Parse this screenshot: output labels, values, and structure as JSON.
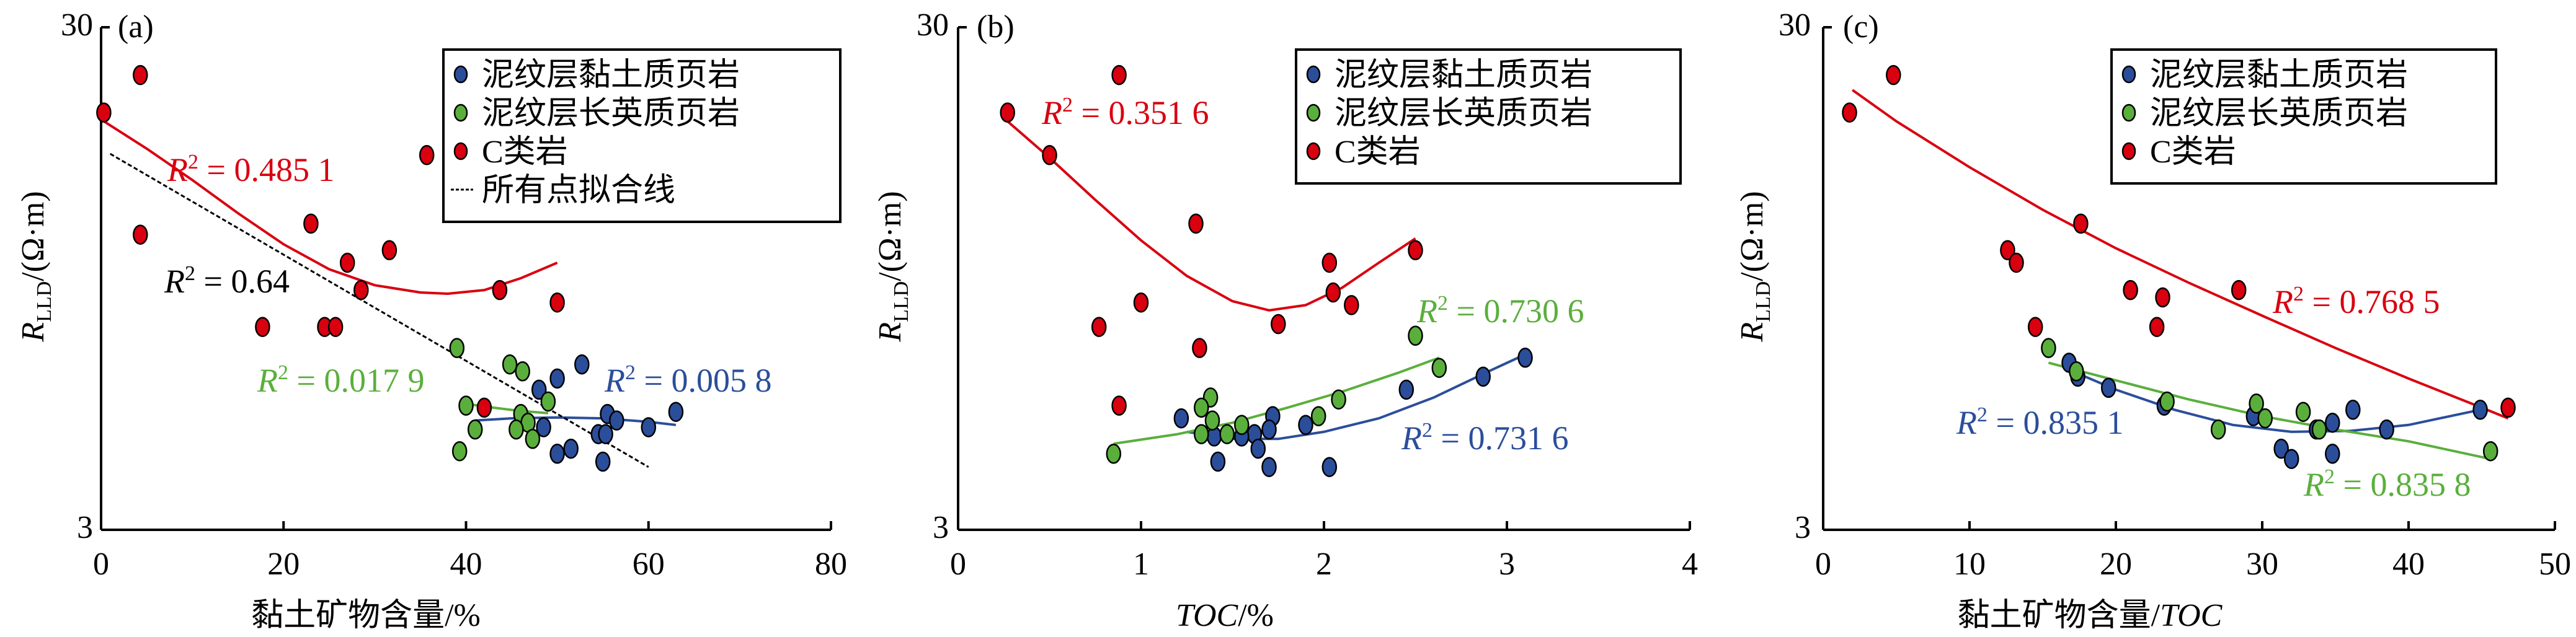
{
  "figure": {
    "colors": {
      "clay": "#2b4e9b",
      "felsic": "#5aaf3c",
      "c_rock": "#d9000f",
      "all_fit": "#000000"
    },
    "legend_entries": {
      "clay": "泥纹层黏土质页岩",
      "felsic": "泥纹层长英质页岩",
      "c_rock": "C类岩",
      "all_fit": "所有点拟合线"
    }
  },
  "chart_data": [
    {
      "type": "scatter",
      "panel_label": "(a)",
      "title": "",
      "xlabel": "黏土矿物含量/%",
      "ylabel_main": "R",
      "ylabel_sub": "LLD",
      "ylabel_unit": "/(Ω·m)",
      "xlim": [
        0,
        80
      ],
      "ylim": [
        3,
        30
      ],
      "yscale": "log",
      "xticks": [
        0,
        20,
        40,
        60,
        80
      ],
      "yticks": [
        3,
        30
      ],
      "grid": false,
      "legend_position": "top-right",
      "legend": [
        "clay",
        "felsic",
        "c_rock",
        "all_fit"
      ],
      "series": [
        {
          "name": "泥纹层黏土质页岩",
          "key": "clay",
          "points": [
            [
              52.7,
              6.4
            ],
            [
              50,
              6.0
            ],
            [
              48,
              5.7
            ],
            [
              63,
              5.15
            ],
            [
              55.5,
              5.1
            ],
            [
              56.5,
              4.95
            ],
            [
              60,
              4.8
            ],
            [
              48.5,
              4.8
            ],
            [
              54.5,
              4.65
            ],
            [
              55.3,
              4.65
            ],
            [
              51.5,
              4.35
            ],
            [
              50,
              4.25
            ],
            [
              55,
              4.1
            ]
          ],
          "fit": {
            "r2_label": "R² = 0.005 8",
            "r2": 0.0058,
            "curve": [
              [
                41,
                4.95
              ],
              [
                45,
                5.0
              ],
              [
                50,
                5.02
              ],
              [
                55,
                5.0
              ],
              [
                60,
                4.92
              ],
              [
                63,
                4.85
              ]
            ]
          }
        },
        {
          "name": "泥纹层长英质页岩",
          "key": "felsic",
          "points": [
            [
              39,
              6.9
            ],
            [
              44.8,
              6.4
            ],
            [
              46.2,
              6.2
            ],
            [
              49,
              5.4
            ],
            [
              40,
              5.3
            ],
            [
              46,
              5.1
            ],
            [
              46.8,
              4.9
            ],
            [
              45.5,
              4.75
            ],
            [
              41,
              4.75
            ],
            [
              47.3,
              4.55
            ],
            [
              39.3,
              4.3
            ]
          ],
          "fit": {
            "r2_label": "R² = 0.017 9",
            "r2": 0.0179,
            "curve": [
              [
                39.8,
                5.35
              ],
              [
                43,
                5.25
              ],
              [
                46,
                5.17
              ],
              [
                49,
                5.12
              ]
            ]
          }
        },
        {
          "name": "C类岩",
          "key": "c_rock",
          "points": [
            [
              4.3,
              24.1
            ],
            [
              0.3,
              20.3
            ],
            [
              4.3,
              11.6
            ],
            [
              35.7,
              16.7
            ],
            [
              23,
              12.2
            ],
            [
              31.6,
              10.8
            ],
            [
              27,
              10.2
            ],
            [
              28.5,
              9.0
            ],
            [
              43.7,
              9.0
            ],
            [
              50,
              8.5
            ],
            [
              17.7,
              7.6
            ],
            [
              24.5,
              7.6
            ],
            [
              25.7,
              7.6
            ],
            [
              42,
              5.25
            ]
          ],
          "fit": {
            "r2_label": "R² = 0.485 1",
            "r2": 0.4851,
            "curve": [
              [
                0.3,
                19.5
              ],
              [
                5,
                17.2
              ],
              [
                10,
                14.9
              ],
              [
                15,
                12.8
              ],
              [
                20,
                11.1
              ],
              [
                25,
                9.9
              ],
              [
                30,
                9.2
              ],
              [
                35,
                8.9
              ],
              [
                38,
                8.85
              ],
              [
                42,
                9.0
              ],
              [
                46,
                9.5
              ],
              [
                50,
                10.2
              ]
            ]
          }
        },
        {
          "name": "所有点拟合线",
          "key": "all_fit",
          "points": [],
          "fit": {
            "r2_label": "R² = 0.64",
            "r2": 0.64,
            "curve": [
              [
                1,
                16.8
              ],
              [
                60,
                4.0
              ]
            ],
            "dashed": true
          }
        }
      ]
    },
    {
      "type": "scatter",
      "panel_label": "(b)",
      "title": "",
      "xlabel": "TOC/%",
      "ylabel_main": "R",
      "ylabel_sub": "LLD",
      "ylabel_unit": "/(Ω·m)",
      "xlim": [
        0,
        4
      ],
      "ylim": [
        3,
        30
      ],
      "yscale": "log",
      "xticks": [
        0,
        1,
        2,
        3,
        4
      ],
      "yticks": [
        3,
        30
      ],
      "grid": false,
      "legend_position": "top-right",
      "legend": [
        "clay",
        "felsic",
        "c_rock"
      ],
      "series": [
        {
          "name": "泥纹层黏土质页岩",
          "key": "clay",
          "points": [
            [
              3.1,
              6.6
            ],
            [
              2.87,
              6.05
            ],
            [
              2.45,
              5.7
            ],
            [
              1.22,
              5.0
            ],
            [
              1.72,
              5.05
            ],
            [
              1.9,
              4.85
            ],
            [
              1.7,
              4.75
            ],
            [
              1.4,
              4.6
            ],
            [
              1.62,
              4.65
            ],
            [
              1.64,
              4.35
            ],
            [
              1.42,
              4.1
            ],
            [
              1.7,
              4.0
            ],
            [
              2.03,
              4.0
            ],
            [
              1.55,
              4.6
            ]
          ],
          "fit": {
            "r2_label": "R² = 0.731 6",
            "r2": 0.7316,
            "curve": [
              [
                1.25,
                4.7
              ],
              [
                1.5,
                4.55
              ],
              [
                1.75,
                4.55
              ],
              [
                2.0,
                4.7
              ],
              [
                2.3,
                5.0
              ],
              [
                2.6,
                5.5
              ],
              [
                2.9,
                6.2
              ],
              [
                3.1,
                6.7
              ]
            ]
          }
        },
        {
          "name": "泥纹层长英质页岩",
          "key": "felsic",
          "points": [
            [
              2.5,
              7.3
            ],
            [
              2.63,
              6.3
            ],
            [
              2.08,
              5.45
            ],
            [
              1.97,
              5.05
            ],
            [
              1.38,
              5.5
            ],
            [
              1.33,
              5.25
            ],
            [
              1.39,
              4.95
            ],
            [
              1.55,
              4.85
            ],
            [
              1.47,
              4.65
            ],
            [
              1.33,
              4.65
            ],
            [
              0.85,
              4.25
            ]
          ],
          "fit": {
            "r2_label": "R² = 0.730 6",
            "r2": 0.7306,
            "curve": [
              [
                0.85,
                4.45
              ],
              [
                1.2,
                4.65
              ],
              [
                1.5,
                4.9
              ],
              [
                1.8,
                5.25
              ],
              [
                2.1,
                5.65
              ],
              [
                2.4,
                6.15
              ],
              [
                2.63,
                6.6
              ]
            ]
          }
        },
        {
          "name": "C类岩",
          "key": "c_rock",
          "points": [
            [
              0.88,
              24.1
            ],
            [
              0.27,
              20.3
            ],
            [
              0.5,
              16.7
            ],
            [
              1.3,
              12.2
            ],
            [
              2.03,
              10.2
            ],
            [
              2.5,
              10.8
            ],
            [
              1.0,
              8.5
            ],
            [
              2.05,
              8.9
            ],
            [
              2.15,
              8.4
            ],
            [
              0.77,
              7.6
            ],
            [
              1.75,
              7.7
            ],
            [
              1.32,
              6.9
            ],
            [
              0.88,
              5.3
            ]
          ],
          "fit": {
            "r2_label": "R² = 0.351 6",
            "r2": 0.3516,
            "curve": [
              [
                0.27,
                19.5
              ],
              [
                0.5,
                16.5
              ],
              [
                0.75,
                13.6
              ],
              [
                1.0,
                11.3
              ],
              [
                1.25,
                9.6
              ],
              [
                1.5,
                8.55
              ],
              [
                1.7,
                8.2
              ],
              [
                1.9,
                8.4
              ],
              [
                2.1,
                9.1
              ],
              [
                2.3,
                10.2
              ],
              [
                2.5,
                11.4
              ]
            ]
          }
        }
      ]
    },
    {
      "type": "scatter",
      "panel_label": "(c)",
      "title": "",
      "xlabel": "黏土矿物含量/TOC",
      "ylabel_main": "R",
      "ylabel_sub": "LLD",
      "ylabel_unit": "/(Ω·m)",
      "xlim": [
        0,
        50
      ],
      "ylim": [
        3,
        30
      ],
      "yscale": "log",
      "xticks": [
        0,
        10,
        20,
        30,
        40,
        50
      ],
      "yticks": [
        3,
        30
      ],
      "grid": false,
      "legend_position": "top-right",
      "legend": [
        "clay",
        "felsic",
        "c_rock"
      ],
      "series": [
        {
          "name": "泥纹层黏土质页岩",
          "key": "clay",
          "points": [
            [
              16.8,
              6.45
            ],
            [
              17.4,
              6.05
            ],
            [
              19.5,
              5.75
            ],
            [
              23.3,
              5.3
            ],
            [
              29.4,
              5.05
            ],
            [
              34.8,
              4.9
            ],
            [
              33.7,
              4.75
            ],
            [
              36.2,
              5.2
            ],
            [
              38.5,
              4.75
            ],
            [
              31.3,
              4.35
            ],
            [
              32.0,
              4.15
            ],
            [
              34.8,
              4.25
            ],
            [
              44.9,
              5.2
            ]
          ],
          "fit": {
            "r2_label": "R² = 0.835 1",
            "r2": 0.8351,
            "curve": [
              [
                16.5,
                6.3
              ],
              [
                20,
                5.7
              ],
              [
                24,
                5.2
              ],
              [
                28,
                4.85
              ],
              [
                32,
                4.7
              ],
              [
                36,
                4.72
              ],
              [
                40,
                4.85
              ],
              [
                44.9,
                5.2
              ]
            ]
          }
        },
        {
          "name": "泥纹层长英质页岩",
          "key": "felsic",
          "points": [
            [
              15.4,
              6.9
            ],
            [
              17.3,
              6.2
            ],
            [
              23.5,
              5.4
            ],
            [
              29.6,
              5.35
            ],
            [
              30.2,
              5.0
            ],
            [
              32.8,
              5.15
            ],
            [
              27.0,
              4.75
            ],
            [
              33.9,
              4.75
            ],
            [
              45.6,
              4.3
            ]
          ],
          "fit": {
            "r2_label": "R² = 0.835 8",
            "r2": 0.8358,
            "curve": [
              [
                15.4,
                6.45
              ],
              [
                20,
                5.95
              ],
              [
                25,
                5.45
              ],
              [
                30,
                5.05
              ],
              [
                35,
                4.75
              ],
              [
                40,
                4.5
              ],
              [
                45.6,
                4.15
              ]
            ]
          }
        },
        {
          "name": "C类岩",
          "key": "c_rock",
          "points": [
            [
              4.8,
              24.1
            ],
            [
              1.8,
              20.3
            ],
            [
              17.6,
              12.2
            ],
            [
              12.6,
              10.8
            ],
            [
              13.2,
              10.2
            ],
            [
              21.0,
              9.0
            ],
            [
              23.2,
              8.7
            ],
            [
              28.4,
              9.0
            ],
            [
              14.5,
              7.6
            ],
            [
              22.8,
              7.6
            ],
            [
              46.8,
              5.25
            ]
          ],
          "fit": {
            "r2_label": "R² = 0.768 5",
            "r2": 0.7685,
            "curve": [
              [
                2,
                22.5
              ],
              [
                5,
                19.5
              ],
              [
                10,
                15.8
              ],
              [
                15,
                13.0
              ],
              [
                20,
                10.9
              ],
              [
                25,
                9.3
              ],
              [
                30,
                8.0
              ],
              [
                35,
                6.9
              ],
              [
                40,
                6.0
              ],
              [
                45,
                5.25
              ],
              [
                46.8,
                5.0
              ]
            ]
          }
        }
      ]
    }
  ]
}
